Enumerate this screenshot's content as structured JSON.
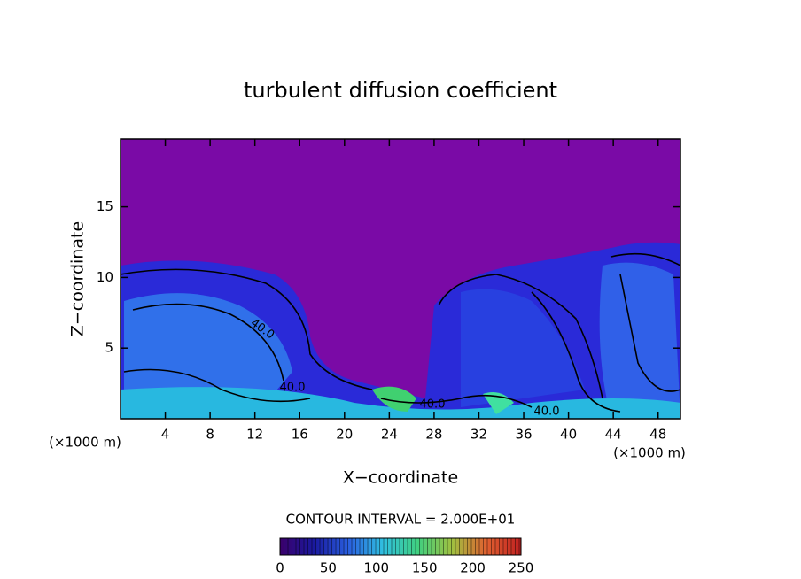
{
  "chart_data": {
    "type": "contour",
    "title": "turbulent diffusion coefficient",
    "x_label": "X−coordinate",
    "y_label": "Z−coordinate",
    "x_unit": "(×1000 m)",
    "y_unit": "(×1000 m)",
    "xlim": [
      0,
      50
    ],
    "xticks": [
      4,
      8,
      12,
      16,
      20,
      24,
      28,
      32,
      36,
      40,
      44,
      48
    ],
    "ylim": [
      0,
      19.8
    ],
    "yticks": [
      5,
      10,
      15
    ],
    "contour_interval_label": "CONTOUR INTERVAL = 2.000E+01",
    "contour_labels": [
      "40.0",
      "40.0",
      "40.0",
      "40.0"
    ],
    "colorbar": {
      "lim": [
        0,
        250
      ],
      "ticks": [
        0,
        50,
        100,
        150,
        200,
        250
      ],
      "colors": [
        "#3a006a",
        "#1a1aa0",
        "#2a60e0",
        "#30c0e0",
        "#40d080",
        "#a0c040",
        "#e06030",
        "#c02020"
      ]
    }
  }
}
